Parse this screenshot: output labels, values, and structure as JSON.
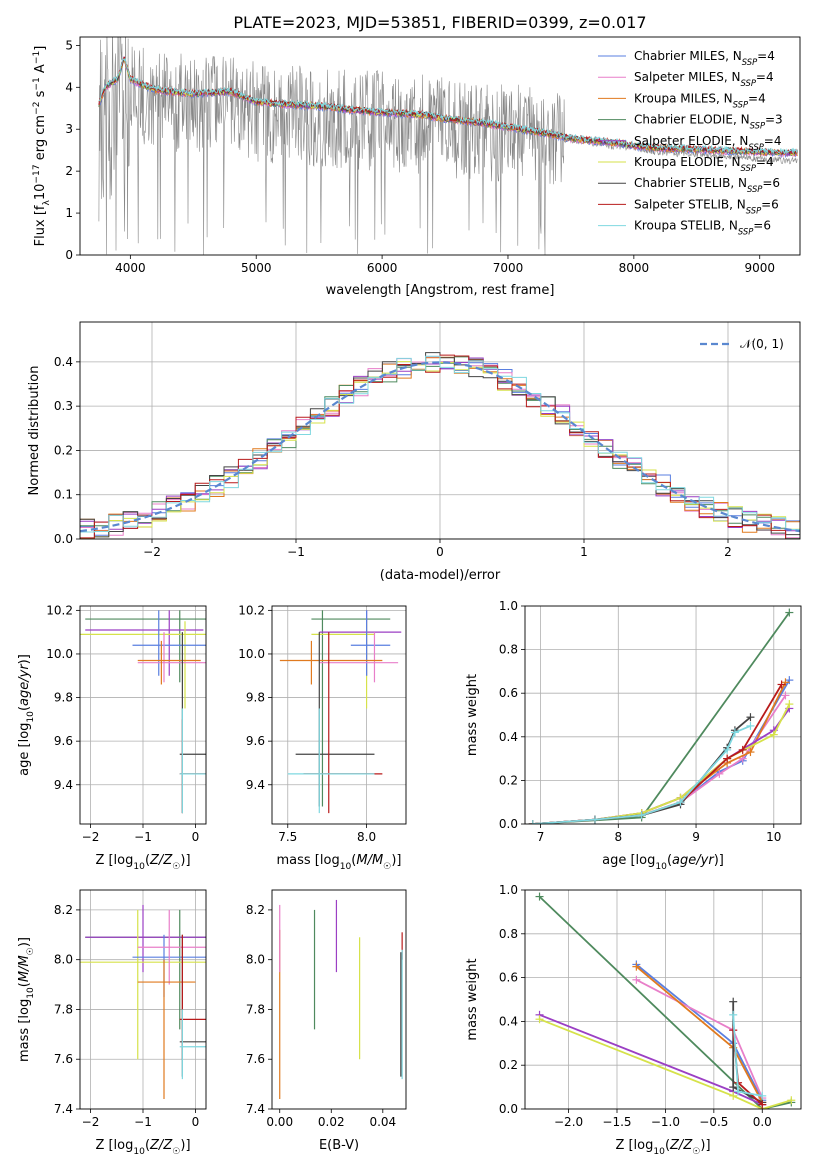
{
  "figure": {
    "title": "PLATE=2023, MJD=53851, FIBERID=0399, z=0.017",
    "background": "#ffffff"
  },
  "palette": {
    "Chabrier MILES": "#5a7fe0",
    "Salpeter MILES": "#e87fc9",
    "Kroupa MILES": "#e07a1f",
    "Chabrier ELODIE": "#4f8a5e",
    "Salpeter ELODIE": "#9b3fc4",
    "Kroupa ELODIE": "#d6e24a",
    "Chabrier STELIB": "#444444",
    "Salpeter STELIB": "#b81b1b",
    "Kroupa STELIB": "#7fd8e0",
    "data": "#888888",
    "gauss": "#5a88d0",
    "grid": "#b0b0b0"
  },
  "chart_data": [
    {
      "id": "spectrum",
      "type": "line",
      "xlabel": "wavelength [Angstrom, rest frame]",
      "ylabel": "Flux [f_λ10^-17 erg cm^-2 s^-1 A^-1]",
      "xlim": [
        3600,
        9320
      ],
      "ylim": [
        0,
        5.2
      ],
      "xticks": [
        4000,
        5000,
        6000,
        7000,
        8000,
        9000
      ],
      "yticks": [
        0,
        1,
        2,
        3,
        4,
        5
      ],
      "grid": false,
      "legend_position": "right",
      "legend": [
        {
          "name": "Chabrier MILES",
          "nssp": "4"
        },
        {
          "name": "Salpeter MILES",
          "nssp": "4"
        },
        {
          "name": "Kroupa MILES",
          "nssp": "4"
        },
        {
          "name": "Chabrier ELODIE",
          "nssp": "3"
        },
        {
          "name": "Salpeter ELODIE",
          "nssp": "4"
        },
        {
          "name": "Kroupa ELODIE",
          "nssp": "4"
        },
        {
          "name": "Chabrier STELIB",
          "nssp": "6"
        },
        {
          "name": "Salpeter STELIB",
          "nssp": "6"
        },
        {
          "name": "Kroupa STELIB",
          "nssp": "6"
        }
      ],
      "data_envelope": {
        "x": [
          3750,
          3900,
          4000,
          4200,
          4500,
          4800,
          5000,
          5500,
          6000,
          6500,
          7000,
          7400,
          7600,
          7800,
          8000,
          8200,
          8500,
          8800,
          9000,
          9200
        ],
        "y": [
          3.0,
          3.5,
          3.8,
          3.7,
          3.6,
          3.6,
          3.4,
          3.3,
          3.2,
          3.05,
          2.9,
          2.78,
          2.72,
          2.6,
          2.55,
          2.45,
          2.4,
          2.35,
          2.3,
          2.25
        ]
      },
      "model_x": [
        3750,
        3800,
        3900,
        3950,
        4000,
        4100,
        4200,
        4300,
        4500,
        4800,
        5000,
        5200,
        5500,
        5800,
        6000,
        6300,
        6500,
        6800,
        7000,
        7200,
        7400,
        7500,
        7700,
        7900,
        8000,
        8200,
        8500,
        8800,
        9000,
        9200
      ],
      "model_y": [
        3.6,
        4.0,
        4.2,
        4.7,
        4.2,
        4.05,
        3.95,
        3.9,
        3.85,
        3.9,
        3.65,
        3.6,
        3.55,
        3.45,
        3.4,
        3.35,
        3.25,
        3.15,
        3.05,
        2.95,
        2.85,
        2.78,
        2.72,
        2.66,
        2.6,
        2.55,
        2.52,
        2.48,
        2.46,
        2.44
      ]
    },
    {
      "id": "residuals",
      "type": "area",
      "xlabel": "(data-model)/error",
      "ylabel": "Normed distribution",
      "xlim": [
        -2.5,
        2.5
      ],
      "ylim": [
        0,
        0.49
      ],
      "xticks": [
        -2,
        -1,
        0,
        1,
        2
      ],
      "yticks": [
        0.0,
        0.1,
        0.2,
        0.3,
        0.4
      ],
      "grid": true,
      "legend_position": "top-right",
      "gauss_label": "𝒩(0, 1)",
      "bin_width": 0.1
    },
    {
      "id": "age_vs_z",
      "type": "scatter",
      "xlabel": "Z [log10(Z/Z☉)]",
      "ylabel": "age  [log10(age/yr)]",
      "xlim": [
        -2.2,
        0.2
      ],
      "ylim": [
        9.22,
        10.22
      ],
      "xticks": [
        -2,
        -1,
        0
      ],
      "yticks": [
        9.4,
        9.6,
        9.8,
        10.0,
        10.2
      ],
      "grid": true,
      "points": [
        {
          "m": "Chabrier ELODIE",
          "x": -0.3,
          "y": 10.16,
          "xe": [
            -2.1,
            0.25
          ],
          "ye": [
            9.87,
            10.2
          ]
        },
        {
          "m": "Salpeter ELODIE",
          "x": -0.5,
          "y": 10.11,
          "xe": [
            -2.1,
            0.15
          ],
          "ye": [
            9.9,
            10.2
          ]
        },
        {
          "m": "Kroupa ELODIE",
          "x": -0.2,
          "y": 10.09,
          "xe": [
            -2.2,
            0.3
          ],
          "ye": [
            9.75,
            10.15
          ]
        },
        {
          "m": "Chabrier MILES",
          "x": -0.7,
          "y": 10.04,
          "xe": [
            -1.2,
            0.2
          ],
          "ye": [
            9.9,
            10.2
          ]
        },
        {
          "m": "Salpeter MILES",
          "x": -0.6,
          "y": 9.96,
          "xe": [
            -1.1,
            0.2
          ],
          "ye": [
            9.87,
            10.1
          ]
        },
        {
          "m": "Kroupa MILES",
          "x": -0.65,
          "y": 9.97,
          "xe": [
            -1.1,
            0.1
          ],
          "ye": [
            9.86,
            10.06
          ]
        },
        {
          "m": "Chabrier STELIB",
          "x": -0.25,
          "y": 9.54,
          "xe": [
            -0.3,
            0.3
          ],
          "ye": [
            9.27,
            10.1
          ]
        },
        {
          "m": "Salpeter STELIB",
          "x": -0.25,
          "y": 9.45,
          "xe": [
            -0.3,
            0.3
          ],
          "ye": [
            9.27,
            9.7
          ]
        },
        {
          "m": "Kroupa STELIB",
          "x": -0.25,
          "y": 9.45,
          "xe": [
            -0.3,
            0.3
          ],
          "ye": [
            9.27,
            9.75
          ]
        }
      ]
    },
    {
      "id": "age_vs_mass",
      "type": "scatter",
      "xlabel": "mass [log10(M/M☉)]",
      "ylabel": "",
      "xlim": [
        7.4,
        8.25
      ],
      "ylim": [
        9.22,
        10.22
      ],
      "xticks": [
        7.5,
        8.0
      ],
      "yticks": [
        9.4,
        9.6,
        9.8,
        10.0,
        10.2
      ],
      "grid": true,
      "points": [
        {
          "m": "Chabrier ELODIE",
          "x": 7.72,
          "y": 10.16,
          "xe": [
            7.65,
            8.15
          ],
          "ye": [
            9.3,
            10.2
          ]
        },
        {
          "m": "Salpeter ELODIE",
          "x": 8.0,
          "y": 10.1,
          "xe": [
            7.7,
            8.22
          ],
          "ye": [
            9.9,
            10.2
          ]
        },
        {
          "m": "Kroupa ELODIE",
          "x": 8.0,
          "y": 10.09,
          "xe": [
            7.65,
            8.05
          ],
          "ye": [
            9.75,
            10.15
          ]
        },
        {
          "m": "Chabrier MILES",
          "x": 8.0,
          "y": 10.04,
          "xe": [
            7.9,
            8.15
          ],
          "ye": [
            9.9,
            10.2
          ]
        },
        {
          "m": "Salpeter MILES",
          "x": 8.05,
          "y": 9.96,
          "xe": [
            7.7,
            8.2
          ],
          "ye": [
            9.87,
            10.1
          ]
        },
        {
          "m": "Kroupa MILES",
          "x": 7.65,
          "y": 9.97,
          "xe": [
            7.45,
            8.1
          ],
          "ye": [
            9.86,
            10.06
          ]
        },
        {
          "m": "Chabrier STELIB",
          "x": 7.7,
          "y": 9.54,
          "xe": [
            7.55,
            8.05
          ],
          "ye": [
            9.3,
            10.1
          ]
        },
        {
          "m": "Salpeter STELIB",
          "x": 7.76,
          "y": 9.45,
          "xe": [
            7.6,
            8.1
          ],
          "ye": [
            9.27,
            10.1
          ]
        },
        {
          "m": "Kroupa STELIB",
          "x": 7.7,
          "y": 9.45,
          "xe": [
            7.5,
            8.05
          ],
          "ye": [
            9.27,
            9.75
          ]
        }
      ]
    },
    {
      "id": "mass_weight_vs_age",
      "type": "line",
      "xlabel": "age  [log10(age/yr)]",
      "ylabel": "mass weight",
      "xlim": [
        6.8,
        10.35
      ],
      "ylim": [
        0,
        1.0
      ],
      "xticks": [
        7,
        8,
        9,
        10
      ],
      "yticks": [
        0.0,
        0.2,
        0.4,
        0.6,
        0.8,
        1.0
      ],
      "grid": true,
      "series": [
        {
          "m": "Chabrier MILES",
          "x": [
            6.9,
            7.7,
            8.3,
            8.8,
            9.3,
            9.6,
            10.2
          ],
          "y": [
            0.0,
            0.02,
            0.04,
            0.1,
            0.24,
            0.29,
            0.66
          ]
        },
        {
          "m": "Salpeter MILES",
          "x": [
            6.9,
            7.7,
            8.3,
            8.8,
            9.3,
            9.6,
            10.15
          ],
          "y": [
            0.0,
            0.02,
            0.04,
            0.1,
            0.23,
            0.3,
            0.59
          ]
        },
        {
          "m": "Kroupa MILES",
          "x": [
            6.9,
            7.7,
            8.3,
            8.8,
            9.4,
            9.7,
            10.15
          ],
          "y": [
            0.0,
            0.02,
            0.05,
            0.12,
            0.28,
            0.33,
            0.65
          ]
        },
        {
          "m": "Chabrier ELODIE",
          "x": [
            6.9,
            8.3,
            10.2
          ],
          "y": [
            0.0,
            0.03,
            0.97
          ]
        },
        {
          "m": "Salpeter ELODIE",
          "x": [
            6.9,
            7.7,
            8.3,
            8.8,
            9.4,
            10.0,
            10.2
          ],
          "y": [
            0.0,
            0.02,
            0.05,
            0.12,
            0.3,
            0.43,
            0.53
          ]
        },
        {
          "m": "Kroupa ELODIE",
          "x": [
            6.9,
            7.7,
            8.3,
            8.8,
            9.4,
            10.0,
            10.2
          ],
          "y": [
            0.0,
            0.02,
            0.05,
            0.12,
            0.3,
            0.41,
            0.55
          ]
        },
        {
          "m": "Chabrier STELIB",
          "x": [
            6.9,
            7.7,
            8.3,
            8.8,
            9.4,
            9.5,
            9.7
          ],
          "y": [
            0.0,
            0.02,
            0.04,
            0.09,
            0.35,
            0.43,
            0.49
          ]
        },
        {
          "m": "Salpeter STELIB",
          "x": [
            6.9,
            7.7,
            8.3,
            8.8,
            9.4,
            9.6,
            10.1
          ],
          "y": [
            0.0,
            0.02,
            0.04,
            0.1,
            0.3,
            0.34,
            0.64
          ]
        },
        {
          "m": "Kroupa STELIB",
          "x": [
            6.9,
            7.7,
            8.3,
            8.8,
            9.4,
            9.5,
            9.7
          ],
          "y": [
            0.0,
            0.02,
            0.04,
            0.1,
            0.34,
            0.42,
            0.45
          ]
        }
      ]
    },
    {
      "id": "mass_vs_z",
      "type": "scatter",
      "xlabel": "Z [log10(Z/Z☉)]",
      "ylabel": "mass [log10(M/M☉)]",
      "xlim": [
        -2.2,
        0.2
      ],
      "ylim": [
        7.4,
        8.28
      ],
      "xticks": [
        -2,
        -1,
        0
      ],
      "yticks": [
        7.4,
        7.6,
        7.8,
        8.0,
        8.2
      ],
      "grid": true,
      "points": [
        {
          "m": "Chabrier ELODIE",
          "x": -0.3,
          "y": 8.09,
          "xe": [
            -2.1,
            0.3
          ],
          "ye": [
            7.72,
            8.2
          ]
        },
        {
          "m": "Salpeter ELODIE",
          "x": -1.0,
          "y": 8.09,
          "xe": [
            -2.1,
            0.2
          ],
          "ye": [
            7.95,
            8.22
          ]
        },
        {
          "m": "Kroupa ELODIE",
          "x": -1.1,
          "y": 7.99,
          "xe": [
            -2.2,
            0.3
          ],
          "ye": [
            7.6,
            8.2
          ]
        },
        {
          "m": "Chabrier MILES",
          "x": -0.6,
          "y": 8.01,
          "xe": [
            -1.2,
            0.2
          ],
          "ye": [
            7.85,
            8.1
          ]
        },
        {
          "m": "Salpeter MILES",
          "x": -0.5,
          "y": 8.05,
          "xe": [
            -1.1,
            0.2
          ],
          "ye": [
            7.9,
            8.2
          ]
        },
        {
          "m": "Kroupa MILES",
          "x": -0.6,
          "y": 7.91,
          "xe": [
            -1.1,
            0.0
          ],
          "ye": [
            7.44,
            8.0
          ]
        },
        {
          "m": "Chabrier STELIB",
          "x": -0.25,
          "y": 7.67,
          "xe": [
            -0.3,
            0.3
          ],
          "ye": [
            7.53,
            8.1
          ]
        },
        {
          "m": "Salpeter STELIB",
          "x": -0.25,
          "y": 7.76,
          "xe": [
            -0.3,
            0.3
          ],
          "ye": [
            7.6,
            8.1
          ]
        },
        {
          "m": "Kroupa STELIB",
          "x": -0.25,
          "y": 7.65,
          "xe": [
            -0.3,
            0.3
          ],
          "ye": [
            7.52,
            7.8
          ]
        }
      ]
    },
    {
      "id": "mass_vs_ebv",
      "type": "scatter",
      "xlabel": "E(B-V)",
      "ylabel": "",
      "xlim": [
        -0.003,
        0.049
      ],
      "ylim": [
        7.4,
        8.28
      ],
      "xticks": [
        0.0,
        0.02,
        0.04
      ],
      "yticks": [
        7.4,
        7.6,
        7.8,
        8.0,
        8.2
      ],
      "grid": false,
      "points": [
        {
          "m": "Kroupa MILES",
          "x": 0.0,
          "y": 7.9,
          "ye": [
            7.44,
            8.12
          ]
        },
        {
          "m": "Salpeter MILES",
          "x": 0.0,
          "y": 8.1,
          "ye": [
            7.95,
            8.22
          ]
        },
        {
          "m": "Chabrier ELODIE",
          "x": 0.0135,
          "y": 8.0,
          "ye": [
            7.72,
            8.2
          ]
        },
        {
          "m": "Salpeter ELODIE",
          "x": 0.022,
          "y": 8.1,
          "ye": [
            7.95,
            8.24
          ]
        },
        {
          "m": "Kroupa ELODIE",
          "x": 0.031,
          "y": 7.9,
          "ye": [
            7.6,
            8.09
          ]
        },
        {
          "m": "Salpeter STELIB",
          "x": 0.0475,
          "y": 8.05,
          "ye": [
            8.0,
            8.11
          ]
        },
        {
          "m": "Chabrier STELIB",
          "x": 0.047,
          "y": 7.9,
          "ye": [
            7.53,
            8.03
          ]
        },
        {
          "m": "Kroupa STELIB",
          "x": 0.0475,
          "y": 7.7,
          "ye": [
            7.52,
            8.04
          ]
        }
      ]
    },
    {
      "id": "mass_weight_vs_z",
      "type": "line",
      "xlabel": "Z [log10(Z/Z☉)]",
      "ylabel": "mass weight",
      "xlim": [
        -2.45,
        0.4
      ],
      "ylim": [
        0,
        1.0
      ],
      "xticks": [
        -2.0,
        -1.5,
        -1.0,
        -0.5,
        0.0
      ],
      "yticks": [
        0.0,
        0.2,
        0.4,
        0.6,
        0.8,
        1.0
      ],
      "grid": true,
      "series": [
        {
          "m": "Chabrier MILES",
          "x": [
            -1.3,
            -0.3,
            0.0
          ],
          "y": [
            0.66,
            0.3,
            0.04
          ]
        },
        {
          "m": "Salpeter MILES",
          "x": [
            -1.3,
            -0.3,
            0.0
          ],
          "y": [
            0.59,
            0.36,
            0.05
          ]
        },
        {
          "m": "Kroupa MILES",
          "x": [
            -1.3,
            -0.3,
            0.0
          ],
          "y": [
            0.65,
            0.28,
            0.03
          ]
        },
        {
          "m": "Chabrier ELODIE",
          "x": [
            -2.3,
            0.0,
            0.3
          ],
          "y": [
            0.97,
            0.0,
            0.03
          ]
        },
        {
          "m": "Salpeter ELODIE",
          "x": [
            -2.3,
            -0.3,
            0.0
          ],
          "y": [
            0.43,
            0.08,
            0.02
          ]
        },
        {
          "m": "Kroupa ELODIE",
          "x": [
            -2.3,
            -0.3,
            0.0,
            0.3
          ],
          "y": [
            0.41,
            0.06,
            0.0,
            0.04
          ]
        },
        {
          "m": "Chabrier STELIB",
          "x": [
            -0.3,
            -0.3,
            0.0
          ],
          "y": [
            0.49,
            0.1,
            0.03
          ]
        },
        {
          "m": "Salpeter STELIB",
          "x": [
            -0.3,
            -0.25,
            0.0
          ],
          "y": [
            0.36,
            0.12,
            0.02
          ]
        },
        {
          "m": "Kroupa STELIB",
          "x": [
            -0.3,
            -0.25,
            0.0
          ],
          "y": [
            0.43,
            0.08,
            0.06
          ]
        }
      ]
    }
  ]
}
